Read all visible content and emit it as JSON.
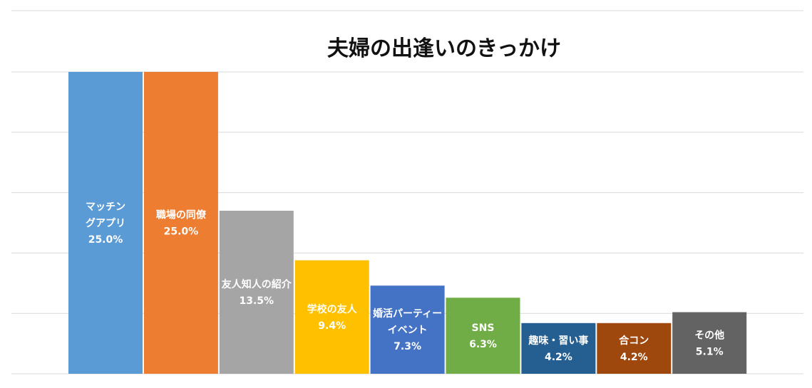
{
  "chart_data": {
    "type": "bar",
    "title": "夫婦の出逢いのきっかけ",
    "xlabel": "",
    "ylabel": "",
    "ylim": [
      0,
      25
    ],
    "grid": true,
    "legend": "none",
    "categories": [
      "マッチングアプリ",
      "職場の同僚",
      "友人知人の紹介",
      "学校の友人",
      "婚活パーティーイベント",
      "SNS",
      "趣味・習い事",
      "合コン",
      "その他"
    ],
    "values": [
      25.0,
      25.0,
      13.5,
      9.4,
      7.3,
      6.3,
      4.2,
      4.2,
      5.1
    ],
    "value_labels": [
      "25.0%",
      "25.0%",
      "13.5%",
      "9.4%",
      "7.3%",
      "6.3%",
      "4.2%",
      "4.2%",
      "5.1%"
    ],
    "display_label_lines": [
      [
        "マッチン",
        "グアプリ"
      ],
      [
        "職場の同僚"
      ],
      [
        "友人知人の紹介"
      ],
      [
        "学校の友人"
      ],
      [
        "婚活パーティー",
        "イベント"
      ],
      [
        "SNS"
      ],
      [
        "趣味・習い事"
      ],
      [
        "合コン"
      ],
      [
        "その他"
      ]
    ],
    "colors": [
      "#5B9BD5",
      "#ED7D31",
      "#A5A5A5",
      "#FFC000",
      "#4472C4",
      "#70AD47",
      "#255E91",
      "#9E480E",
      "#636363"
    ],
    "gridline_color": "#D9D9D9",
    "title_color": "#111111"
  }
}
